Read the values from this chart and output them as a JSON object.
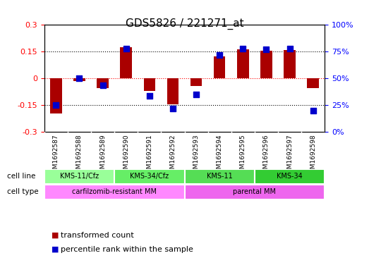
{
  "title": "GDS5826 / 221271_at",
  "samples": [
    "GSM1692587",
    "GSM1692588",
    "GSM1692589",
    "GSM1692590",
    "GSM1692591",
    "GSM1692592",
    "GSM1692593",
    "GSM1692594",
    "GSM1692595",
    "GSM1692596",
    "GSM1692597",
    "GSM1692598"
  ],
  "transformed_count": [
    -0.195,
    -0.015,
    -0.055,
    0.175,
    -0.07,
    -0.145,
    -0.04,
    0.125,
    0.165,
    0.155,
    0.16,
    -0.055
  ],
  "percentile_rank": [
    25,
    50,
    44,
    78,
    34,
    22,
    35,
    72,
    78,
    77,
    78,
    20
  ],
  "bar_color": "#aa0000",
  "dot_color": "#0000cc",
  "left_ylim": [
    -0.3,
    0.3
  ],
  "right_ylim": [
    0,
    100
  ],
  "left_yticks": [
    -0.3,
    -0.15,
    0,
    0.15,
    0.3
  ],
  "right_yticks": [
    0,
    25,
    50,
    75,
    100
  ],
  "right_yticklabels": [
    "0%",
    "25%",
    "50%",
    "75%",
    "100%"
  ],
  "hlines": [
    -0.15,
    0.0,
    0.15
  ],
  "hline_colors": [
    "black",
    "red",
    "black"
  ],
  "hline_styles": [
    "dotted",
    "dotted",
    "dotted"
  ],
  "cell_line_groups": [
    {
      "label": "KMS-11/Cfz",
      "start": 0,
      "end": 3,
      "color": "#99ff99"
    },
    {
      "label": "KMS-34/Cfz",
      "start": 3,
      "end": 6,
      "color": "#66ee66"
    },
    {
      "label": "KMS-11",
      "start": 6,
      "end": 9,
      "color": "#55dd55"
    },
    {
      "label": "KMS-34",
      "start": 9,
      "end": 12,
      "color": "#33cc33"
    }
  ],
  "cell_type_groups": [
    {
      "label": "carfilzomib-resistant MM",
      "start": 0,
      "end": 6,
      "color": "#ff88ff"
    },
    {
      "label": "parental MM",
      "start": 6,
      "end": 12,
      "color": "#ee66ee"
    }
  ],
  "cell_line_label": "cell line",
  "cell_type_label": "cell type",
  "legend_items": [
    {
      "color": "#aa0000",
      "label": "transformed count"
    },
    {
      "color": "#0000cc",
      "label": "percentile rank within the sample"
    }
  ],
  "bar_width": 0.5,
  "dot_size": 40,
  "axis_bg": "#e8e8e8",
  "row_label_color": "#333333",
  "title_fontsize": 11,
  "axis_fontsize": 8,
  "legend_fontsize": 8
}
